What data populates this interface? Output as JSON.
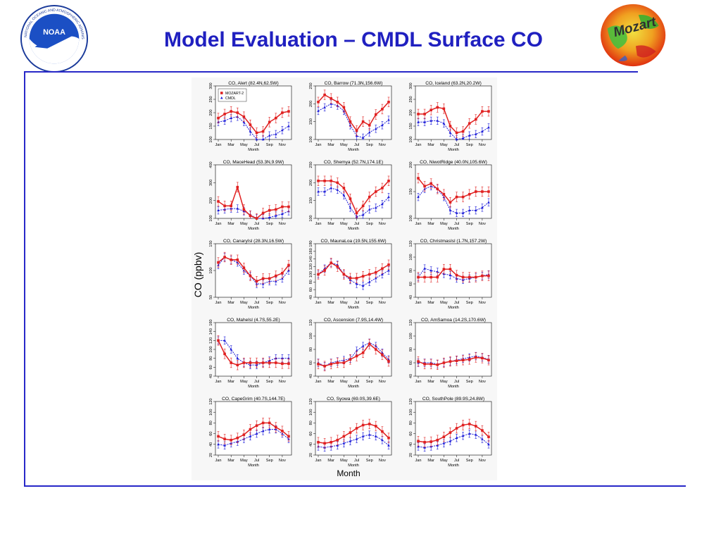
{
  "title": "Model Evaluation – CMDL Surface CO",
  "logos": {
    "left": "noaa-seal",
    "left_text": "NATIONAL OCEANIC AND ATMOSPHERIC ADMINISTRATION • U.S. DEPARTMENT OF COMMERCE",
    "left_center": "NOAA",
    "right": "mozart-globe",
    "right_text": "Mozart"
  },
  "colors": {
    "accent": "#2828c8",
    "model": "#e02020",
    "obs": "#1a1ad8"
  },
  "chart_data": {
    "type": "line",
    "ylabel": "CO (ppbv)",
    "xlabel": "Month",
    "x_ticks": [
      "Jan",
      "Mar",
      "May",
      "Jul",
      "Sep",
      "Nov"
    ],
    "legend": [
      {
        "name": "MOZART-2",
        "color": "#e02020",
        "marker": "square"
      },
      {
        "name": "CMDL",
        "color": "#1a1ad8",
        "marker": "triangle"
      }
    ],
    "panels": [
      {
        "title": "CO, Alert (82.4N,62.5W)",
        "ylim": [
          100,
          300
        ],
        "yticks": [
          "100",
          "150",
          "200",
          "250",
          "300"
        ],
        "legend": true,
        "model": [
          180,
          195,
          205,
          200,
          185,
          155,
          125,
          130,
          165,
          180,
          200,
          205
        ],
        "obs": [
          165,
          170,
          180,
          185,
          165,
          130,
          100,
          100,
          115,
          120,
          135,
          150
        ]
      },
      {
        "title": "CO, Barrow (71.3N,156.6W)",
        "ylim": [
          100,
          250
        ],
        "yticks": [
          "100",
          "150",
          "200",
          "250"
        ],
        "model": [
          205,
          225,
          215,
          205,
          190,
          150,
          125,
          150,
          140,
          170,
          185,
          205
        ],
        "obs": [
          180,
          190,
          200,
          195,
          180,
          140,
          110,
          105,
          120,
          130,
          140,
          155
        ]
      },
      {
        "title": "CO, Iceland (63.2N,20.2W)",
        "ylim": [
          100,
          300
        ],
        "yticks": [
          "100",
          "150",
          "200",
          "250",
          "300"
        ],
        "model": [
          195,
          195,
          210,
          220,
          215,
          150,
          125,
          130,
          160,
          175,
          205,
          205
        ],
        "obs": [
          165,
          165,
          170,
          170,
          160,
          125,
          100,
          105,
          115,
          120,
          130,
          145
        ]
      },
      {
        "title": "CO, MaceHead (53.3N,9.9W)",
        "ylim": [
          100,
          400
        ],
        "yticks": [
          "100",
          "200",
          "300",
          "400"
        ],
        "model": [
          195,
          170,
          170,
          275,
          150,
          115,
          100,
          130,
          145,
          150,
          165,
          165
        ],
        "obs": [
          145,
          150,
          155,
          155,
          140,
          120,
          100,
          100,
          105,
          115,
          125,
          140
        ]
      },
      {
        "title": "CO, Shemya (52.7N,174.1E)",
        "ylim": [
          100,
          250
        ],
        "yticks": [
          "100",
          "150",
          "200",
          "250"
        ],
        "model": [
          205,
          205,
          205,
          200,
          185,
          155,
          115,
          135,
          160,
          175,
          185,
          205
        ],
        "obs": [
          175,
          175,
          185,
          180,
          165,
          130,
          105,
          110,
          125,
          130,
          140,
          160
        ]
      },
      {
        "title": "CO, NiwotRidge (40.0N,105.6W)",
        "ylim": [
          100,
          200
        ],
        "yticks": [
          "100",
          "150",
          "200"
        ],
        "model": [
          175,
          160,
          165,
          155,
          145,
          130,
          140,
          140,
          145,
          150,
          150,
          150
        ],
        "obs": [
          140,
          155,
          160,
          155,
          140,
          115,
          110,
          110,
          115,
          115,
          120,
          130
        ]
      },
      {
        "title": "CO, CanaryIsl (28.3N,16.5W)",
        "ylim": [
          50,
          150
        ],
        "yticks": [
          "50",
          "100",
          "150"
        ],
        "model": [
          115,
          125,
          120,
          120,
          105,
          90,
          80,
          85,
          85,
          90,
          95,
          110
        ],
        "obs": [
          110,
          125,
          120,
          115,
          100,
          90,
          75,
          75,
          80,
          80,
          85,
          100
        ]
      },
      {
        "title": "CO, MaunaLoa (19.5N,155.6W)",
        "ylim": [
          40,
          180
        ],
        "yticks": [
          "40",
          "60",
          "80",
          "100",
          "120",
          "140",
          "160",
          "180"
        ],
        "model": [
          100,
          110,
          130,
          120,
          100,
          90,
          90,
          95,
          100,
          105,
          115,
          125
        ],
        "obs": [
          100,
          115,
          130,
          125,
          100,
          85,
          75,
          70,
          80,
          90,
          100,
          110
        ]
      },
      {
        "title": "CO, ChristmasIsl (1.7N,157.2W)",
        "ylim": [
          40,
          120
        ],
        "yticks": [
          "40",
          "60",
          "80",
          "100",
          "120"
        ],
        "model": [
          70,
          70,
          70,
          70,
          82,
          82,
          73,
          70,
          70,
          70,
          72,
          72
        ],
        "obs": [
          70,
          83,
          80,
          78,
          75,
          73,
          68,
          66,
          68,
          70,
          72,
          74
        ]
      },
      {
        "title": "CO, MaheIsl (4.7S,55.2E)",
        "ylim": [
          40,
          160
        ],
        "yticks": [
          "40",
          "60",
          "80",
          "100",
          "120",
          "140",
          "160"
        ],
        "model": [
          120,
          90,
          70,
          65,
          70,
          70,
          70,
          70,
          70,
          70,
          68,
          68
        ],
        "obs": [
          120,
          120,
          100,
          80,
          70,
          65,
          65,
          70,
          75,
          80,
          80,
          80
        ]
      },
      {
        "title": "CO, Ascension (7.9S,14.4W)",
        "ylim": [
          40,
          120
        ],
        "yticks": [
          "40",
          "60",
          "80",
          "100",
          "120"
        ],
        "model": [
          58,
          55,
          58,
          60,
          60,
          65,
          70,
          75,
          88,
          80,
          72,
          62
        ],
        "obs": [
          60,
          55,
          60,
          62,
          64,
          66,
          78,
          85,
          90,
          85,
          75,
          65
        ]
      },
      {
        "title": "CO, AmSamoa (14.2S,170.6W)",
        "ylim": [
          40,
          120
        ],
        "yticks": [
          "40",
          "60",
          "80",
          "100",
          "120"
        ],
        "model": [
          62,
          58,
          58,
          57,
          60,
          62,
          63,
          64,
          65,
          68,
          67,
          64
        ],
        "obs": [
          60,
          60,
          60,
          58,
          60,
          62,
          64,
          66,
          68,
          70,
          68,
          65
        ]
      },
      {
        "title": "CO, CapeGrim (40.7S,144.7E)",
        "ylim": [
          20,
          120
        ],
        "yticks": [
          "20",
          "40",
          "60",
          "80",
          "100",
          "120"
        ],
        "model": [
          55,
          50,
          48,
          52,
          58,
          68,
          75,
          80,
          80,
          72,
          65,
          55
        ],
        "obs": [
          40,
          38,
          42,
          45,
          50,
          55,
          60,
          65,
          68,
          68,
          60,
          50
        ]
      },
      {
        "title": "CO, Syowa (69.0S,39.6E)",
        "ylim": [
          20,
          120
        ],
        "yticks": [
          "20",
          "40",
          "60",
          "80",
          "100",
          "120"
        ],
        "model": [
          44,
          42,
          44,
          48,
          55,
          62,
          70,
          76,
          78,
          74,
          64,
          52
        ],
        "obs": [
          36,
          34,
          36,
          38,
          42,
          46,
          50,
          55,
          58,
          55,
          48,
          38
        ]
      },
      {
        "title": "CO, SouthPole (89.9S,24.8W)",
        "ylim": [
          20,
          120
        ],
        "yticks": [
          "20",
          "40",
          "60",
          "80",
          "100",
          "120"
        ],
        "model": [
          46,
          44,
          45,
          48,
          54,
          62,
          70,
          76,
          78,
          74,
          66,
          54
        ],
        "obs": [
          36,
          34,
          36,
          38,
          42,
          46,
          52,
          56,
          60,
          58,
          50,
          40
        ]
      }
    ]
  }
}
